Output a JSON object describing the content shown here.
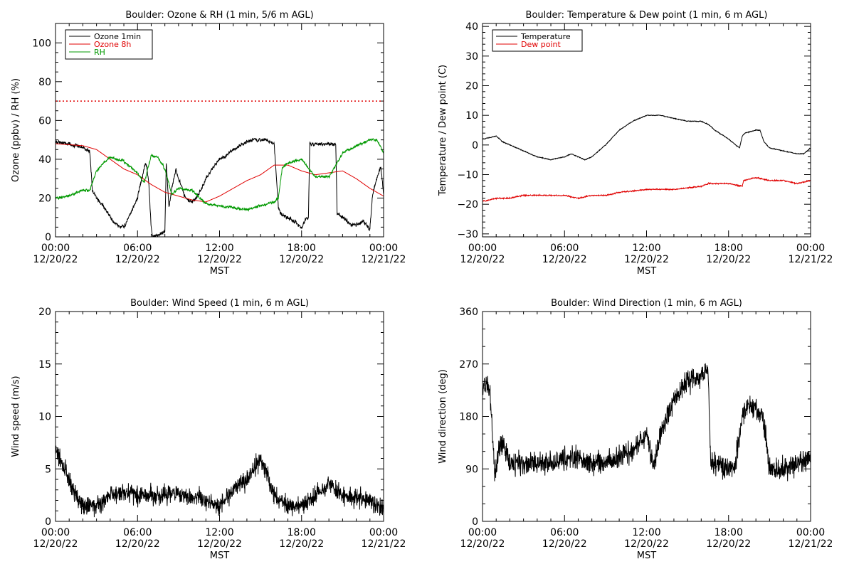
{
  "chart_data": [
    {
      "type": "line",
      "title": "Boulder: Ozone & RH (1 min, 5/6 m AGL)",
      "ylabel": "Ozone (ppbv) / RH (%)",
      "xlabel": "MST",
      "ylim": [
        0,
        110
      ],
      "yticks": [
        "0",
        "20",
        "40",
        "60",
        "80",
        "100"
      ],
      "yticks_values": [
        0,
        20,
        40,
        60,
        80,
        100
      ],
      "xlim": [
        0,
        24
      ],
      "xticks_values": [
        0,
        6,
        12,
        18,
        24
      ],
      "xticks": [
        {
          "time": "00:00",
          "date": "12/20/22"
        },
        {
          "time": "06:00",
          "date": "12/20/22"
        },
        {
          "time": "12:00",
          "date": "12/20/22"
        },
        {
          "time": "18:00",
          "date": "12/20/22"
        },
        {
          "time": "00:00",
          "date": "12/21/22"
        }
      ],
      "legend": {
        "placement": "top-left",
        "entries": [
          {
            "label": "Ozone 1min",
            "color": "#000000"
          },
          {
            "label": "Ozone 8h",
            "color": "#e00000"
          },
          {
            "label": "RH",
            "color": "#009900"
          }
        ]
      },
      "reference_line": {
        "y": 70,
        "color": "#e00000",
        "style": "dotted"
      },
      "series": [
        {
          "name": "Ozone 1min",
          "color": "#000000",
          "noise": 1.5,
          "x": [
            0,
            1,
            2,
            2.5,
            2.7,
            3,
            3.5,
            4,
            4.5,
            5,
            5.5,
            6,
            6.3,
            6.6,
            6.8,
            7.0,
            7.1,
            7.5,
            8,
            8.1,
            8.3,
            8.5,
            8.8,
            9,
            9.5,
            10,
            10.5,
            11,
            11.5,
            12,
            12.5,
            13,
            13.5,
            14,
            14.5,
            15,
            15.5,
            16,
            16.3,
            16.5,
            17,
            17.5,
            18,
            18.3,
            18.5,
            18.6,
            19,
            19.5,
            20.5,
            20.6,
            21,
            21.5,
            22,
            22.5,
            23,
            23.2,
            23.5,
            23.8,
            24
          ],
          "y": [
            49,
            48,
            46,
            44,
            24,
            20,
            16,
            10,
            6,
            5,
            12,
            20,
            30,
            38,
            30,
            5,
            0,
            1,
            3,
            38,
            15,
            25,
            35,
            30,
            20,
            18,
            22,
            30,
            35,
            40,
            42,
            45,
            47,
            49,
            50,
            50,
            50,
            48,
            15,
            12,
            10,
            8,
            5,
            9,
            10,
            48,
            48,
            48,
            48,
            12,
            10,
            7,
            6,
            8,
            4,
            22,
            30,
            36,
            22
          ]
        },
        {
          "name": "Ozone 8h",
          "color": "#e00000",
          "noise": 0,
          "x": [
            0,
            2,
            3,
            4,
            5,
            6,
            7,
            8,
            9,
            10,
            11,
            12,
            13,
            14,
            15,
            16,
            17,
            18,
            19,
            20,
            21,
            22,
            23,
            24
          ],
          "y": [
            48,
            47,
            45,
            40,
            35,
            32,
            27,
            23,
            21,
            19,
            18,
            21,
            25,
            29,
            32,
            37,
            37,
            34,
            32,
            33,
            34,
            30,
            25,
            21
          ]
        },
        {
          "name": "RH",
          "color": "#009900",
          "noise": 1.0,
          "x": [
            0,
            1,
            2,
            2.5,
            3,
            3.5,
            4,
            5,
            6,
            6.5,
            7,
            7.5,
            8,
            8.5,
            9,
            10,
            11,
            12,
            13,
            14,
            15,
            16,
            16.3,
            16.6,
            17,
            18,
            19,
            20,
            21,
            21.5,
            22,
            23,
            23.5,
            23.8,
            24
          ],
          "y": [
            20,
            21,
            24,
            24,
            34,
            38,
            41,
            39,
            33,
            28,
            42,
            41,
            35,
            22,
            25,
            24,
            17,
            16,
            15,
            14,
            16,
            18,
            20,
            36,
            38,
            40,
            31,
            31,
            43,
            45,
            47,
            50,
            50,
            46,
            43
          ]
        }
      ]
    },
    {
      "type": "line",
      "title": "Boulder: Temperature & Dew point (1 min, 6 m AGL)",
      "ylabel": "Temperature / Dew point (C)",
      "xlabel": "MST",
      "ylim": [
        -31,
        41
      ],
      "yticks": [
        "−30",
        "−20",
        "−10",
        "0",
        "10",
        "20",
        "30",
        "40"
      ],
      "yticks_values": [
        -30,
        -20,
        -10,
        0,
        10,
        20,
        30,
        40
      ],
      "xlim": [
        0,
        24
      ],
      "xticks_values": [
        0,
        6,
        12,
        18,
        24
      ],
      "xticks": [
        {
          "time": "00:00",
          "date": "12/20/22"
        },
        {
          "time": "06:00",
          "date": "12/20/22"
        },
        {
          "time": "12:00",
          "date": "12/20/22"
        },
        {
          "time": "18:00",
          "date": "12/20/22"
        },
        {
          "time": "00:00",
          "date": "12/21/22"
        }
      ],
      "legend": {
        "placement": "top-left",
        "entries": [
          {
            "label": "Temperature",
            "color": "#000000"
          },
          {
            "label": "Dew point",
            "color": "#e00000"
          }
        ]
      },
      "reference_line": null,
      "series": [
        {
          "name": "Temperature",
          "color": "#000000",
          "noise": 0.2,
          "x": [
            0,
            1,
            1.5,
            2,
            3,
            4,
            5,
            6,
            6.5,
            7,
            7.5,
            8,
            9,
            10,
            11,
            12,
            13,
            14,
            15,
            16,
            16.5,
            17,
            18,
            18.8,
            19,
            19.2,
            20,
            20.3,
            20.6,
            21,
            22,
            23,
            23.5,
            24
          ],
          "y": [
            2,
            3,
            1,
            0,
            -2,
            -4,
            -5,
            -4,
            -3,
            -4,
            -5,
            -4,
            0,
            5,
            8,
            10,
            10,
            9,
            8,
            8,
            7,
            5,
            2,
            -1,
            3,
            4,
            5,
            5,
            1,
            -1,
            -2,
            -3,
            -3,
            -1
          ]
        },
        {
          "name": "Dew point",
          "color": "#e00000",
          "noise": 0.3,
          "x": [
            0,
            1,
            2,
            3,
            4,
            5,
            6,
            7,
            8,
            9,
            10,
            12,
            14,
            16,
            16.5,
            17,
            18,
            19,
            19.1,
            20,
            21,
            22,
            23,
            24
          ],
          "y": [
            -19,
            -18,
            -18,
            -17,
            -17,
            -17,
            -17,
            -18,
            -17,
            -17,
            -16,
            -15,
            -15,
            -14,
            -13,
            -13,
            -13,
            -14,
            -12,
            -11,
            -12,
            -12,
            -13,
            -12
          ]
        }
      ]
    },
    {
      "type": "line",
      "title": "Boulder: Wind Speed (1 min, 6 m AGL)",
      "ylabel": "Wind speed (m/s)",
      "xlabel": "MST",
      "ylim": [
        0,
        20
      ],
      "yticks": [
        "0",
        "5",
        "10",
        "15",
        "20"
      ],
      "yticks_values": [
        0,
        5,
        10,
        15,
        20
      ],
      "xlim": [
        0,
        24
      ],
      "xticks_values": [
        0,
        6,
        12,
        18,
        24
      ],
      "xticks": [
        {
          "time": "00:00",
          "date": "12/20/22"
        },
        {
          "time": "06:00",
          "date": "12/20/22"
        },
        {
          "time": "12:00",
          "date": "12/20/22"
        },
        {
          "time": "18:00",
          "date": "12/20/22"
        },
        {
          "time": "00:00",
          "date": "12/21/22"
        }
      ],
      "legend": null,
      "reference_line": null,
      "series": [
        {
          "color": "#000000",
          "noise": 1.3,
          "x": [
            0,
            0.3,
            0.6,
            1,
            1.5,
            2,
            3,
            4,
            5,
            6,
            7,
            8,
            9,
            10,
            11,
            12,
            12.5,
            13,
            13.5,
            14,
            14.5,
            15,
            15.5,
            16,
            17,
            18,
            18.5,
            19,
            19.5,
            20,
            21,
            22,
            23,
            23.5,
            24
          ],
          "y": [
            7,
            6,
            5,
            4,
            2.5,
            1.5,
            1.5,
            2.5,
            2.8,
            2.5,
            2.5,
            2.5,
            2.5,
            2.3,
            2.0,
            1.5,
            2.2,
            3.0,
            3.5,
            4.0,
            5.0,
            6.0,
            4.5,
            2.5,
            1.5,
            1.5,
            2.0,
            2.5,
            3.0,
            3.5,
            2.5,
            2.2,
            2.0,
            1.5,
            1.2
          ]
        }
      ]
    },
    {
      "type": "line",
      "title": "Boulder: Wind Direction (1 min, 6 m AGL)",
      "ylabel": "Wind direction (deg)",
      "xlabel": "MST",
      "ylim": [
        0,
        360
      ],
      "yticks": [
        "0",
        "90",
        "180",
        "270",
        "360"
      ],
      "yticks_values": [
        0,
        90,
        180,
        270,
        360
      ],
      "xlim": [
        0,
        24
      ],
      "xticks_values": [
        0,
        6,
        12,
        18,
        24
      ],
      "xticks": [
        {
          "time": "00:00",
          "date": "12/20/22"
        },
        {
          "time": "06:00",
          "date": "12/20/22"
        },
        {
          "time": "12:00",
          "date": "12/20/22"
        },
        {
          "time": "18:00",
          "date": "12/20/22"
        },
        {
          "time": "00:00",
          "date": "12/21/22"
        }
      ],
      "legend": null,
      "reference_line": null,
      "series": [
        {
          "color": "#000000",
          "noise": 28,
          "x": [
            0,
            0.4,
            0.6,
            0.9,
            1.2,
            1.5,
            2,
            3,
            4,
            5,
            6,
            7,
            8,
            9,
            10,
            11,
            12,
            12.5,
            13,
            13.5,
            14,
            15,
            16,
            16.5,
            16.7,
            17,
            18,
            18.5,
            19,
            19.5,
            20,
            20.5,
            21,
            22,
            23,
            24
          ],
          "y": [
            230,
            235,
            200,
            80,
            120,
            140,
            100,
            100,
            100,
            100,
            105,
            110,
            100,
            100,
            110,
            120,
            150,
            90,
            150,
            180,
            210,
            240,
            250,
            260,
            100,
            100,
            90,
            100,
            180,
            200,
            190,
            180,
            90,
            90,
            100,
            110
          ]
        }
      ]
    }
  ]
}
